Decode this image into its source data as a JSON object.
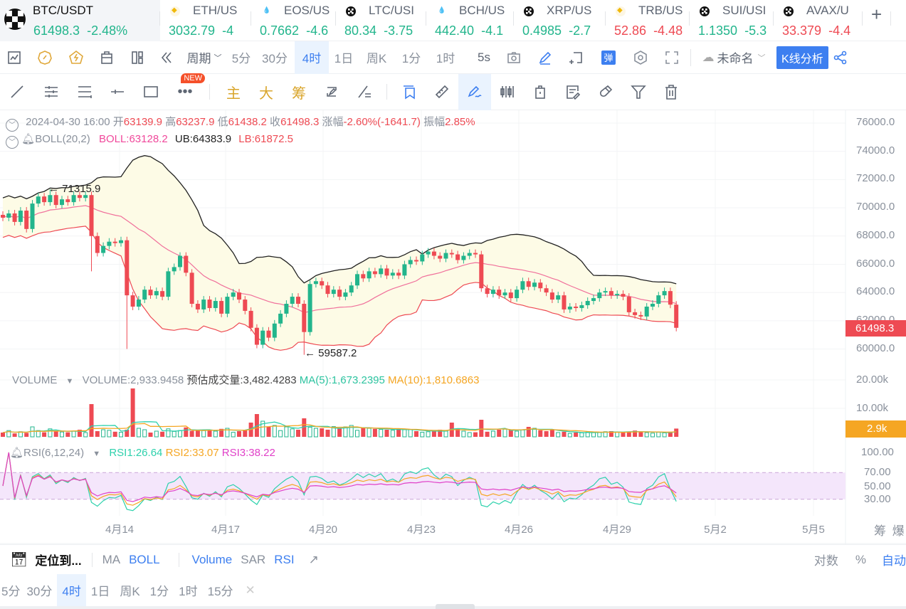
{
  "ticker": [
    {
      "symbol": "BTC/USDT",
      "price": "61498.3",
      "change": "-2.48%",
      "color": "green",
      "icon": "okx"
    },
    {
      "symbol": "ETH/US",
      "price": "3032.79",
      "change": "-4",
      "color": "green",
      "icon": "bnb"
    },
    {
      "symbol": "EOS/US",
      "price": "0.7662",
      "change": "-4.6",
      "color": "green",
      "icon": "huobi"
    },
    {
      "symbol": "LTC/USI",
      "price": "80.34",
      "change": "-3.75",
      "color": "green",
      "icon": "okx"
    },
    {
      "symbol": "BCH/US",
      "price": "442.40",
      "change": "-4.1",
      "color": "green",
      "icon": "huobi"
    },
    {
      "symbol": "XRP/US",
      "price": "0.4985",
      "change": "-2.7",
      "color": "green",
      "icon": "okx"
    },
    {
      "symbol": "TRB/US",
      "price": "52.86",
      "change": "-4.48",
      "color": "red",
      "icon": "bnb"
    },
    {
      "symbol": "SUI/USI",
      "price": "1.1350",
      "change": "-5.3",
      "color": "green",
      "icon": "okx"
    },
    {
      "symbol": "AVAX/U",
      "price": "33.379",
      "change": "-4.4",
      "color": "red",
      "icon": "okx"
    }
  ],
  "toolbar": {
    "period_label": "周期",
    "timeframes": [
      "5分",
      "30分",
      "4时",
      "1日",
      "周K",
      "1分",
      "1时"
    ],
    "active_timeframe": "4时",
    "refresh": "5s",
    "layout_name": "未命名",
    "analysis_button": "K线分析",
    "danmaku": "弹"
  },
  "drawbar": {
    "new_badge": "NEW",
    "zhu": "主",
    "da": "大",
    "chou": "筹"
  },
  "ohlc_info": {
    "datetime": "2024-04-30 16:00",
    "open_label": "开",
    "open": "63139.9",
    "high_label": "高",
    "high": "63237.9",
    "low_label": "低",
    "low": "61438.2",
    "close_label": "收",
    "close": "61498.3",
    "change_label": "涨幅",
    "change": "-2.60%(-1641.7)",
    "amp_label": "振幅",
    "amp": "2.85%"
  },
  "boll_info": {
    "name": "BOLL(20,2)",
    "boll": "BOLL:63128.2",
    "ub": "UB:64383.9",
    "lb": "LB:61872.5"
  },
  "volume_info": {
    "name": "VOLUME",
    "volume": "VOLUME:2,933.9458",
    "estimate": "预估成交量:3,482.4283",
    "ma5": "MA(5):1,673.2395",
    "ma10": "MA(10):1,810.6863"
  },
  "rsi_info": {
    "name": "RSI(6,12,24)",
    "rsi1": "RSI1:26.64",
    "rsi2": "RSI2:33.07",
    "rsi3": "RSI3:38.22"
  },
  "price_axis": [
    "76000.0",
    "74000.0",
    "72000.0",
    "70000.0",
    "68000.0",
    "66000.0",
    "64000.0",
    "62000.0",
    "60000.0"
  ],
  "current_price_tag": "61498.3",
  "volume_axis": [
    "20.00k",
    "10.00k"
  ],
  "current_volume_tag": "2.9k",
  "rsi_axis": [
    "100.00",
    "70.00",
    "50.00",
    "30.00"
  ],
  "date_axis": [
    "4月14",
    "4月17",
    "4月20",
    "4月23",
    "4月26",
    "4月29",
    "5月2",
    "5月5"
  ],
  "axis_corner": {
    "a": "筹",
    "b": "爆"
  },
  "annotations": {
    "high": "← 71315.9",
    "low": "← 59587.2"
  },
  "bottom_bar": {
    "locate": "定位到...",
    "indicators": [
      "MA",
      "BOLL"
    ],
    "sub_indicators": [
      "Volume",
      "SAR",
      "RSI"
    ],
    "log": "对数",
    "percent": "%",
    "auto": "自动"
  },
  "timeframe_bar": [
    "5分",
    "30分",
    "4时",
    "1日",
    "周K",
    "1分",
    "1时",
    "15分"
  ],
  "colors": {
    "up": "#22b58c",
    "down": "#ee4a53",
    "accent": "#3d7ff0",
    "boll_mid": "#f0709b",
    "ub": "#222222",
    "lb": "#ee4a53",
    "band_fill": "#fdfbe6",
    "rsi1": "#2dd1ac",
    "rsi2": "#f5a623",
    "rsi3": "#e040c8"
  },
  "chart_data": {
    "type": "candlestick",
    "symbol": "BTC/USDT",
    "interval": "4h",
    "price_range": [
      60000,
      76000
    ],
    "closes": [
      69300,
      69600,
      69000,
      69800,
      68500,
      70300,
      70800,
      70400,
      70900,
      70200,
      70600,
      70400,
      70900,
      70700,
      70900,
      68000,
      66800,
      67300,
      67600,
      67500,
      67700,
      63800,
      63000,
      63500,
      64200,
      63800,
      64100,
      63700,
      65500,
      65800,
      66600,
      65400,
      63200,
      62800,
      63500,
      62900,
      63400,
      62500,
      63700,
      64000,
      63500,
      62700,
      61500,
      60300,
      61300,
      60800,
      61800,
      62500,
      63200,
      63700,
      63200,
      61200,
      64600,
      64800,
      64500,
      63900,
      64200,
      63700,
      64000,
      64500,
      65300,
      65000,
      65500,
      65300,
      65700,
      65200,
      65400,
      65200,
      66000,
      66300,
      66200,
      66700,
      66900,
      66600,
      66400,
      66800,
      66700,
      66300,
      66600,
      66800,
      66700,
      64300,
      63900,
      64200,
      63800,
      64000,
      63600,
      64200,
      64800,
      64400,
      64700,
      64300,
      64000,
      63500,
      63800,
      62800,
      63000,
      62900,
      63100,
      63400,
      63600,
      64000,
      64100,
      63800,
      63900,
      63700,
      62600,
      62400,
      62300,
      63000,
      63200,
      63800,
      64100,
      63139.9,
      61498.3
    ],
    "extreme_wicks": {
      "high": {
        "index": 8,
        "value": 71315.9
      },
      "low": {
        "index": 51,
        "value": 59587.2
      },
      "other_lows": [
        [
          21,
          60000
        ],
        [
          15,
          65500
        ]
      ]
    },
    "volume_k": [
      1.5,
      2.2,
      1.2,
      1.8,
      1.4,
      3.5,
      2.2,
      1.6,
      2.8,
      2.0,
      1.7,
      1.6,
      2.0,
      2.5,
      1.5,
      11.5,
      2.0,
      2.5,
      2.3,
      1.8,
      1.6,
      2.5,
      17.0,
      3.0,
      2.5,
      1.5,
      2.0,
      1.8,
      2.8,
      1.9,
      2.2,
      3.3,
      2.1,
      2.5,
      2.2,
      2.3,
      2.0,
      2.8,
      3.0,
      1.6,
      2.0,
      2.5,
      5.0,
      8.0,
      5.5,
      3.5,
      4.0,
      2.2,
      3.5,
      2.8,
      2.5,
      6.5,
      3.4,
      3.0,
      3.0,
      2.5,
      3.6,
      3.0,
      3.5,
      4.0,
      2.3,
      3.2,
      3.0,
      2.8,
      2.6,
      2.5,
      2.3,
      2.8,
      2.5,
      2.6,
      2.0,
      1.6,
      1.8,
      2.2,
      2.5,
      2.0,
      5.0,
      2.8,
      2.0,
      1.5,
      1.6,
      6.0,
      1.8,
      2.0,
      2.5,
      2.7,
      2.5,
      2.0,
      2.4,
      3.5,
      3.0,
      2.3,
      2.0,
      2.5,
      1.5,
      1.8,
      1.2,
      1.5,
      1.4,
      1.6,
      1.7,
      1.5,
      1.8,
      2.0,
      1.6,
      1.5,
      1.9,
      2.2,
      1.8,
      1.5,
      1.3,
      1.6,
      1.4,
      1.8,
      2.9
    ],
    "volume_range": [
      0,
      20
    ],
    "rsi_range": [
      0,
      100
    ],
    "rsi_band": [
      30,
      70
    ],
    "boll_period": 20,
    "boll_mult": 2
  }
}
